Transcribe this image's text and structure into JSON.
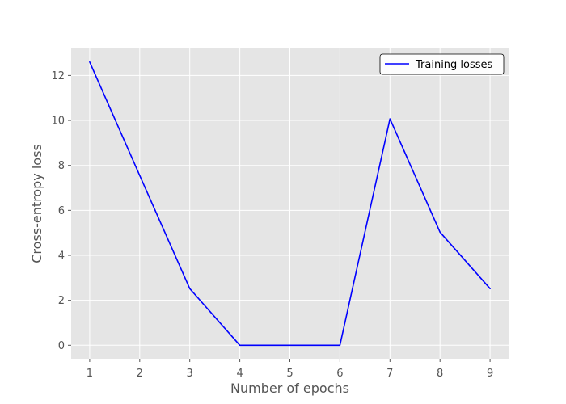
{
  "chart_data": {
    "type": "line",
    "title": "",
    "xlabel": "Number of epochs",
    "ylabel": "Cross-entropy loss",
    "x": [
      1,
      2,
      3,
      4,
      5,
      6,
      7,
      8,
      9
    ],
    "series": [
      {
        "name": "Training losses",
        "color": "#0000ff",
        "values": [
          12.6,
          7.55,
          2.52,
          0.0,
          0.0,
          0.0,
          10.07,
          5.03,
          2.52
        ]
      }
    ],
    "xlim": [
      0.63,
      9.37
    ],
    "ylim": [
      -0.6,
      13.2
    ],
    "xticks": [
      1,
      2,
      3,
      4,
      5,
      6,
      7,
      8,
      9
    ],
    "yticks": [
      0,
      2,
      4,
      6,
      8,
      10,
      12
    ],
    "grid": true,
    "legend_position": "top-right",
    "background": "#e5e5e5",
    "grid_color": "#ffffff"
  }
}
